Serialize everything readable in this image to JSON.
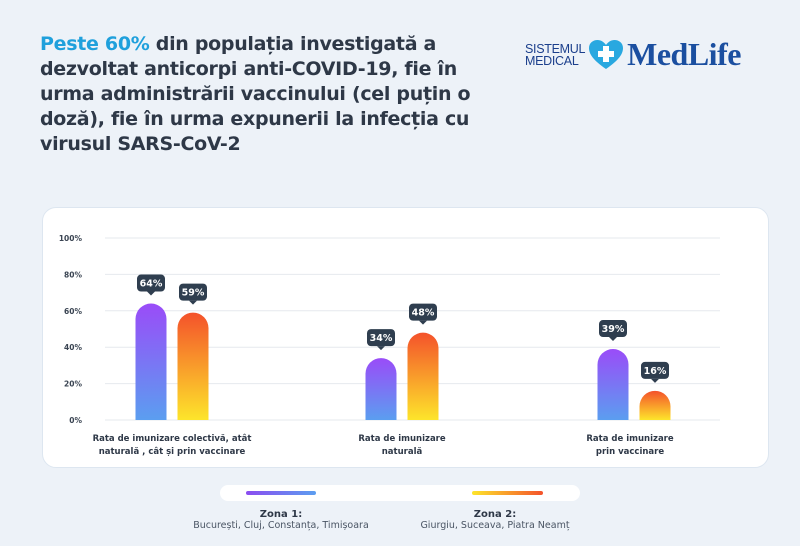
{
  "header": {
    "title_highlight": "Peste 60%",
    "title_rest": " din populația investigată a dezvoltat anticorpi anti-COVID-19, fie în urma administrării vaccinului (cel puțin o doză), fie în urma expunerii la infecția cu virusul SARS-CoV-2",
    "highlight_color": "#1fa0dc"
  },
  "logo": {
    "line1": "SISTEMUL",
    "line2": "MEDICAL",
    "brand": "MedLife",
    "icon": "heart-cross-icon"
  },
  "chart_data": {
    "type": "bar",
    "categories": [
      [
        "Rata de imunizare colectivă, atât",
        "naturală , cât și prin vaccinare"
      ],
      [
        "Rata de imunizare",
        "naturală"
      ],
      [
        "Rata de imunizare",
        "prin vaccinare"
      ]
    ],
    "series": [
      {
        "name": "Zona 1:",
        "description": "București, Cluj, Constanța, Timișoara",
        "values": [
          64,
          34,
          39
        ],
        "value_labels": [
          "64%",
          "34%",
          "39%"
        ],
        "colors": [
          "#9a4cf8",
          "#5b9ef0"
        ]
      },
      {
        "name": "Zona 2:",
        "description": "Giurgiu, Suceava, Piatra Neamț",
        "values": [
          59,
          48,
          16
        ],
        "value_labels": [
          "59%",
          "48%",
          "16%"
        ],
        "colors": [
          "#f4522b",
          "#fde52b"
        ]
      }
    ],
    "yticks": [
      "0%",
      "20%",
      "40%",
      "60%",
      "80%",
      "100%"
    ],
    "ylim": [
      0,
      100
    ],
    "grid": true,
    "legend_placement": "bottom"
  }
}
